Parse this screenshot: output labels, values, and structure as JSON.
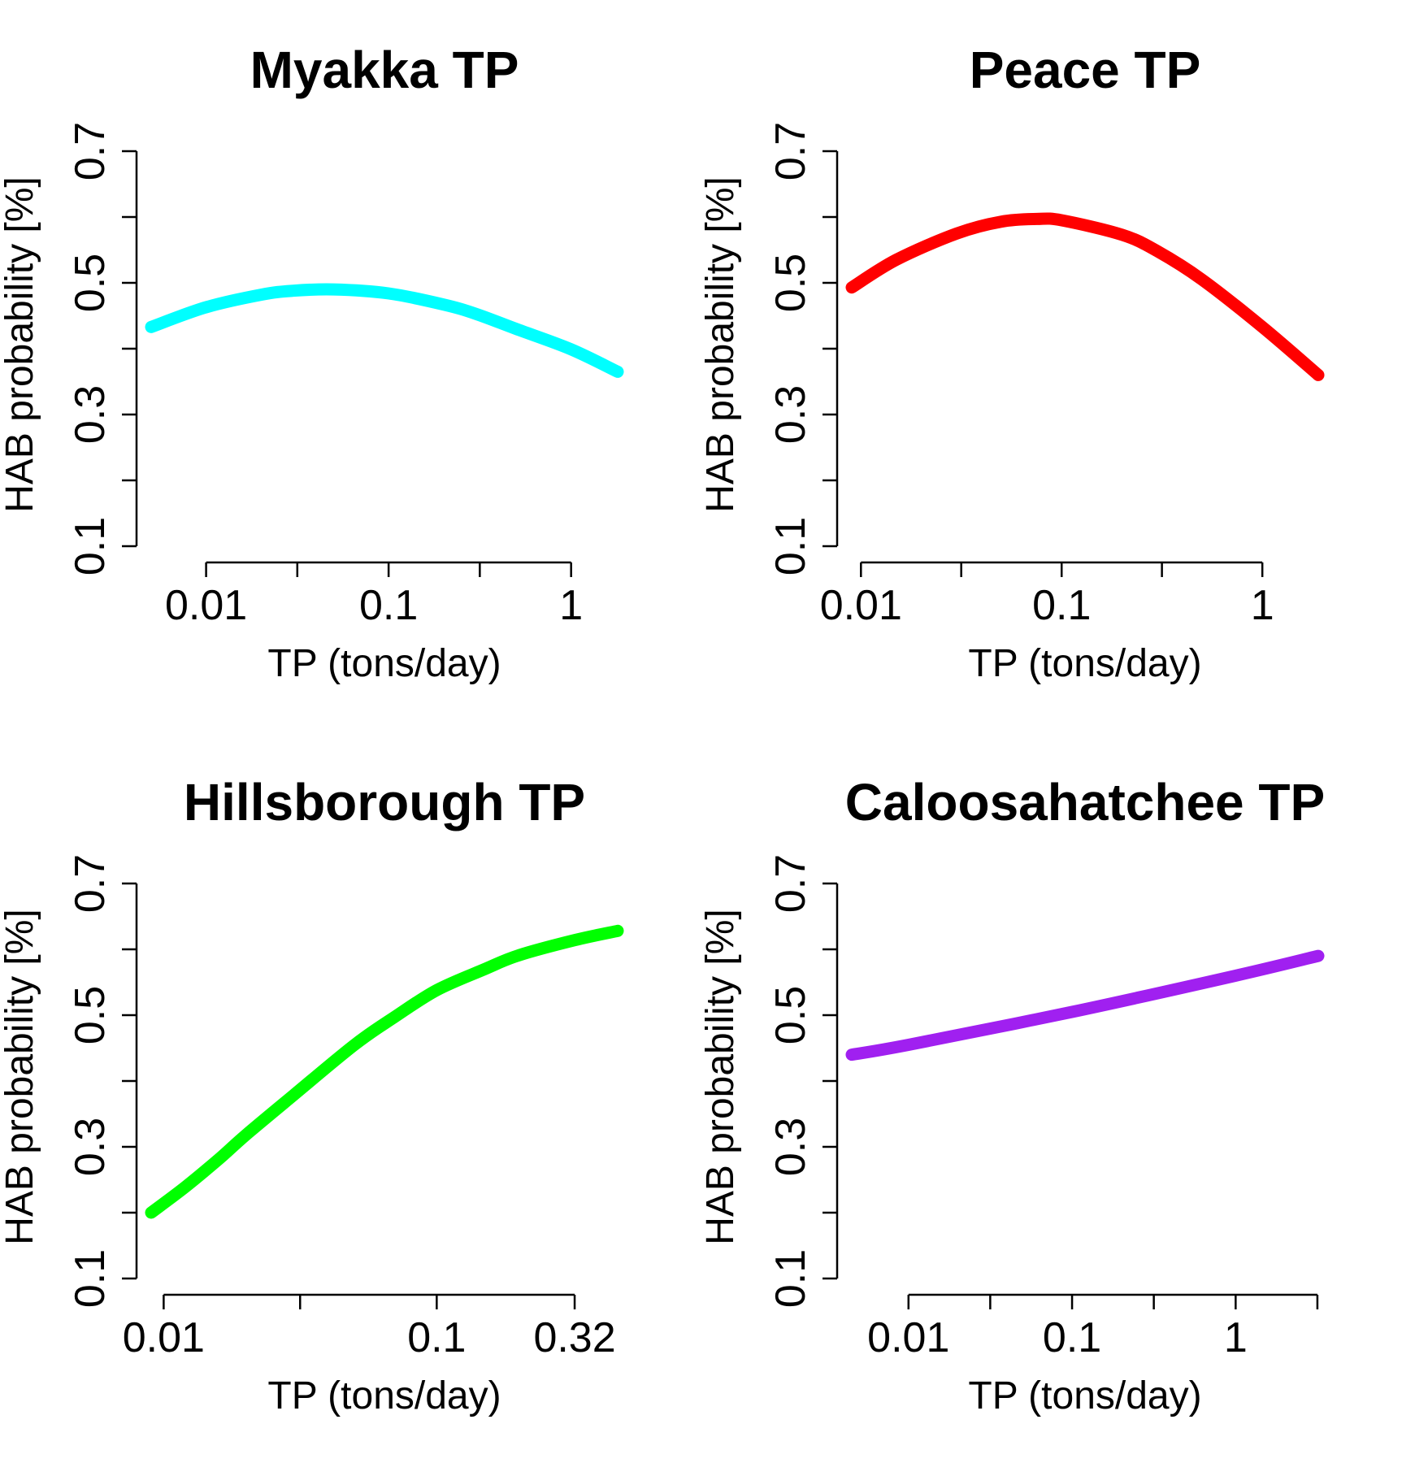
{
  "chart_data": [
    {
      "type": "line",
      "title": "Myakka TP",
      "xlabel": "TP (tons/day)",
      "ylabel": "HAB probability [%]",
      "x_scale": "log",
      "x_ticks": [
        0.01,
        0.1,
        1
      ],
      "x_tick_labels": [
        "0.01",
        "0.1",
        "1"
      ],
      "x_minor_ticks": [
        0.0316,
        0.316
      ],
      "xlim": [
        0.005,
        1.8
      ],
      "y_ticks": [
        0.1,
        0.2,
        0.3,
        0.4,
        0.5,
        0.6,
        0.7
      ],
      "y_tick_labels": [
        "0.1",
        "",
        "0.3",
        "",
        "0.5",
        "",
        "0.7"
      ],
      "ylim": [
        0.1,
        0.7
      ],
      "color": "#00FFFF",
      "x": [
        0.005,
        0.01,
        0.02,
        0.03,
        0.05,
        0.1,
        0.2,
        0.3,
        0.5,
        1,
        1.8
      ],
      "y": [
        0.433,
        0.463,
        0.482,
        0.488,
        0.49,
        0.484,
        0.467,
        0.453,
        0.43,
        0.399,
        0.365
      ]
    },
    {
      "type": "line",
      "title": "Peace TP",
      "xlabel": "TP (tons/day)",
      "ylabel": "HAB probability [%]",
      "x_scale": "log",
      "x_ticks": [
        0.01,
        0.1,
        1
      ],
      "x_tick_labels": [
        "0.01",
        "0.1",
        "1"
      ],
      "x_minor_ticks": [
        0.0316,
        0.316
      ],
      "xlim": [
        0.009,
        1.9
      ],
      "y_ticks": [
        0.1,
        0.2,
        0.3,
        0.4,
        0.5,
        0.6,
        0.7
      ],
      "y_tick_labels": [
        "0.1",
        "",
        "0.3",
        "",
        "0.5",
        "",
        "0.7"
      ],
      "ylim": [
        0.1,
        0.7
      ],
      "color": "#FF0000",
      "x": [
        0.009,
        0.015,
        0.03,
        0.05,
        0.075,
        0.1,
        0.2,
        0.3,
        0.5,
        1,
        1.9
      ],
      "y": [
        0.493,
        0.535,
        0.575,
        0.593,
        0.597,
        0.595,
        0.573,
        0.548,
        0.505,
        0.433,
        0.36
      ]
    },
    {
      "type": "line",
      "title": "Hillsborough TP",
      "xlabel": "TP (tons/day)",
      "ylabel": "HAB probability [%]",
      "x_scale": "log",
      "x_ticks": [
        0.01,
        0.1,
        0.32
      ],
      "x_tick_labels": [
        "0.01",
        "0.1",
        "0.32"
      ],
      "x_minor_ticks": [
        0.0316
      ],
      "xlim": [
        0.009,
        0.46
      ],
      "y_ticks": [
        0.1,
        0.2,
        0.3,
        0.4,
        0.5,
        0.6,
        0.7
      ],
      "y_tick_labels": [
        "0.1",
        "",
        "0.3",
        "",
        "0.5",
        "",
        "0.7"
      ],
      "ylim": [
        0.1,
        0.7
      ],
      "color": "#00FF00",
      "x": [
        0.009,
        0.012,
        0.016,
        0.02,
        0.03,
        0.05,
        0.07,
        0.1,
        0.15,
        0.2,
        0.32,
        0.46
      ],
      "y": [
        0.2,
        0.239,
        0.282,
        0.318,
        0.379,
        0.455,
        0.497,
        0.538,
        0.57,
        0.591,
        0.614,
        0.628
      ]
    },
    {
      "type": "line",
      "title": "Caloosahatchee TP",
      "xlabel": "TP (tons/day)",
      "ylabel": "HAB probability [%]",
      "x_scale": "log",
      "x_ticks": [
        0.01,
        0.1,
        1
      ],
      "x_tick_labels": [
        "0.01",
        "0.1",
        "1"
      ],
      "x_minor_ticks": [
        0.0316,
        0.316,
        3.16
      ],
      "xlim": [
        0.0045,
        3.2
      ],
      "y_ticks": [
        0.1,
        0.2,
        0.3,
        0.4,
        0.5,
        0.6,
        0.7
      ],
      "y_tick_labels": [
        "0.1",
        "",
        "0.3",
        "",
        "0.5",
        "",
        "0.7"
      ],
      "ylim": [
        0.1,
        0.7
      ],
      "color": "#A020F0",
      "x": [
        0.0045,
        0.01,
        0.1,
        1,
        3.2
      ],
      "y": [
        0.44,
        0.455,
        0.505,
        0.56,
        0.59
      ]
    }
  ]
}
